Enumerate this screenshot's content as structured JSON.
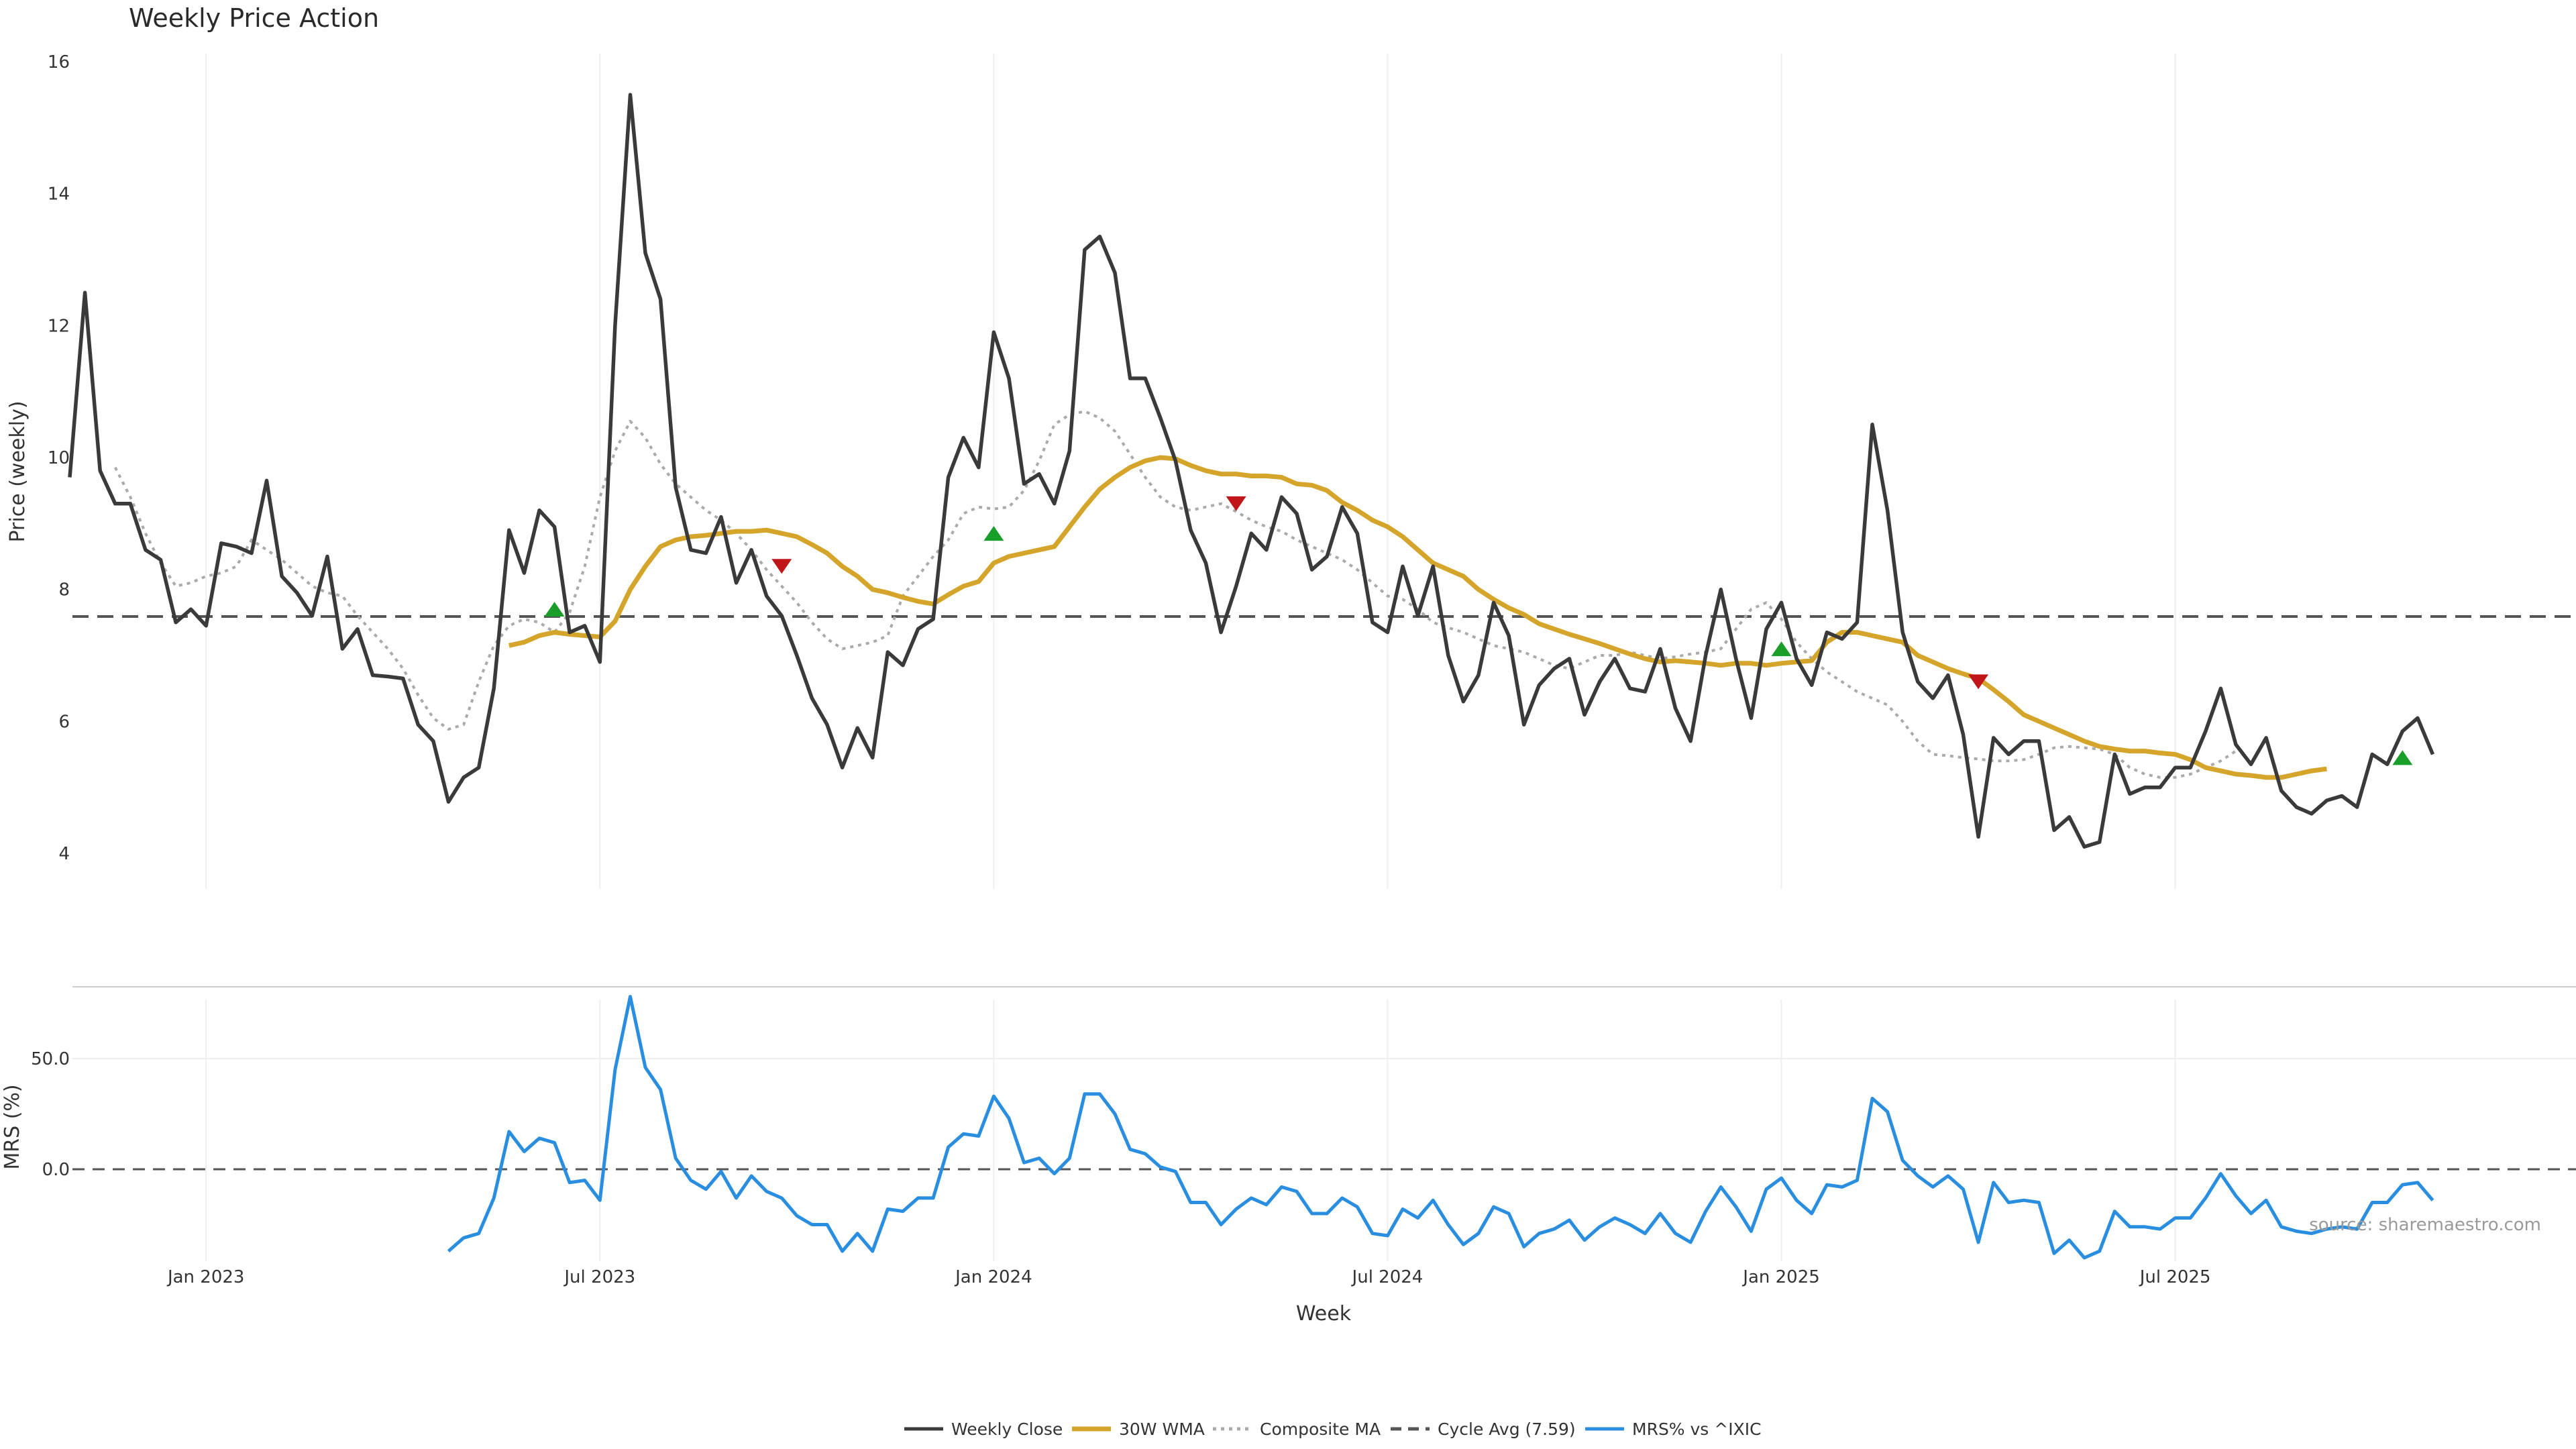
{
  "chart_data": {
    "type": "line",
    "title": "Weekly Price Action",
    "xlabel": "Week",
    "source": "source: sharemaestro.com",
    "colors": {
      "close": "#3a3a3a",
      "wma": "#d4a52a",
      "composite": "#aaaaaa",
      "cycle": "#555555",
      "mrs": "#2a8ee0",
      "buy": "#1a9e2a",
      "sell": "#c0161a",
      "grid": "#eeeeee",
      "divider": "#cccccc"
    },
    "x_ticks": [
      {
        "week": 9,
        "label": "Jan 2023"
      },
      {
        "week": 35,
        "label": "Jul 2023"
      },
      {
        "week": 61,
        "label": "Jan 2024"
      },
      {
        "week": 87,
        "label": "Jul 2024"
      },
      {
        "week": 113,
        "label": "Jan 2025"
      },
      {
        "week": 139,
        "label": "Jul 2025"
      }
    ],
    "price_panel": {
      "ylabel": "Price (weekly)",
      "ylim": [
        3.45,
        16.2
      ],
      "yticks": [
        {
          "value": 4,
          "label": "4"
        },
        {
          "value": 6,
          "label": "6"
        },
        {
          "value": 8,
          "label": "8"
        },
        {
          "value": 10,
          "label": "10"
        },
        {
          "value": 12,
          "label": "12"
        },
        {
          "value": 14,
          "label": "14"
        },
        {
          "value": 16,
          "label": "16"
        }
      ],
      "cycle_avg": 7.59
    },
    "mrs_panel": {
      "ylabel": "MRS (%)",
      "ylim": [
        -50,
        90
      ],
      "yticks": [
        {
          "value": 0,
          "label": "0.0"
        },
        {
          "value": 50,
          "label": "50.0"
        }
      ]
    },
    "legend": {
      "placement": "bottom-center",
      "items": [
        {
          "key": "close",
          "label": "Weekly Close",
          "style": "solid"
        },
        {
          "key": "wma",
          "label": "30W WMA",
          "style": "solid"
        },
        {
          "key": "composite",
          "label": "Composite MA",
          "style": "dotted"
        },
        {
          "key": "cycle",
          "label": "Cycle Avg (7.59)",
          "style": "dashed"
        },
        {
          "key": "mrs",
          "label": "MRS% vs ^IXIC",
          "style": "solid"
        }
      ]
    },
    "series": {
      "close": {
        "start_week": 0,
        "values": [
          9.7,
          12.5,
          9.8,
          9.3,
          9.3,
          8.6,
          8.45,
          7.5,
          7.7,
          7.45,
          8.7,
          8.65,
          8.55,
          9.65,
          8.2,
          7.95,
          7.6,
          8.5,
          7.1,
          7.4,
          6.7,
          6.68,
          6.65,
          5.95,
          5.7,
          4.78,
          5.15,
          5.3,
          6.5,
          8.9,
          8.25,
          9.2,
          8.95,
          7.35,
          7.45,
          6.9,
          12.0,
          15.5,
          13.1,
          12.4,
          9.55,
          8.6,
          8.55,
          9.1,
          8.1,
          8.6,
          7.9,
          7.6,
          7.0,
          6.35,
          5.95,
          5.3,
          5.9,
          5.45,
          7.05,
          6.85,
          7.4,
          7.55,
          9.7,
          10.3,
          9.85,
          11.9,
          11.2,
          9.6,
          9.75,
          9.3,
          10.1,
          13.15,
          13.35,
          12.8,
          11.2,
          11.2,
          10.6,
          9.95,
          8.9,
          8.4,
          7.35,
          8.05,
          8.85,
          8.6,
          9.4,
          9.15,
          8.3,
          8.5,
          9.25,
          8.85,
          7.5,
          7.35,
          8.35,
          7.6,
          8.35,
          7.0,
          6.3,
          6.7,
          7.8,
          7.3,
          5.95,
          6.55,
          6.8,
          6.95,
          6.1,
          6.6,
          6.95,
          6.5,
          6.45,
          7.1,
          6.2,
          5.7,
          7.0,
          8.0,
          6.95,
          6.05,
          7.4,
          7.8,
          6.95,
          6.55,
          7.35,
          7.25,
          7.5,
          10.5,
          9.2,
          7.35,
          6.6,
          6.35,
          6.7,
          5.8,
          4.25,
          5.75,
          5.5,
          5.7,
          5.7,
          4.35,
          4.55,
          4.1,
          4.17,
          5.5,
          4.9,
          5.0,
          5.0,
          5.3,
          5.3,
          5.85,
          6.5,
          5.65,
          5.35,
          5.75,
          4.95,
          4.7,
          4.6,
          4.8,
          4.87,
          4.7,
          5.5,
          5.35,
          5.85,
          6.05,
          5.5
        ]
      },
      "wma": {
        "start_week": 29,
        "values": [
          7.15,
          7.2,
          7.3,
          7.35,
          7.32,
          7.3,
          7.28,
          7.52,
          8.0,
          8.35,
          8.65,
          8.75,
          8.8,
          8.82,
          8.85,
          8.88,
          8.88,
          8.9,
          8.85,
          8.8,
          8.68,
          8.55,
          8.35,
          8.2,
          8.0,
          7.95,
          7.88,
          7.82,
          7.78,
          7.92,
          8.05,
          8.12,
          8.4,
          8.5,
          8.55,
          8.6,
          8.65,
          8.95,
          9.25,
          9.52,
          9.7,
          9.85,
          9.95,
          10.0,
          9.98,
          9.88,
          9.8,
          9.75,
          9.75,
          9.72,
          9.72,
          9.7,
          9.6,
          9.58,
          9.5,
          9.32,
          9.2,
          9.05,
          8.95,
          8.8,
          8.6,
          8.4,
          8.3,
          8.2,
          8.0,
          7.85,
          7.72,
          7.62,
          7.48,
          7.4,
          7.32,
          7.25,
          7.18,
          7.1,
          7.02,
          6.95,
          6.9,
          6.92,
          6.9,
          6.88,
          6.85,
          6.88,
          6.88,
          6.85,
          6.88,
          6.9,
          6.92,
          7.2,
          7.35,
          7.35,
          7.3,
          7.25,
          7.2,
          7.0,
          6.9,
          6.8,
          6.72,
          6.65,
          6.48,
          6.3,
          6.1,
          6.0,
          5.9,
          5.8,
          5.7,
          5.62,
          5.58,
          5.55,
          5.55,
          5.52,
          5.5,
          5.42,
          5.3,
          5.25,
          5.2,
          5.18,
          5.15,
          5.15,
          5.2,
          5.25,
          5.28
        ]
      },
      "composite": {
        "start_week": 3,
        "values": [
          9.85,
          9.4,
          8.85,
          8.4,
          8.05,
          8.1,
          8.2,
          8.25,
          8.35,
          8.75,
          8.6,
          8.45,
          8.25,
          8.05,
          7.95,
          7.9,
          7.6,
          7.35,
          7.1,
          6.8,
          6.4,
          6.05,
          5.88,
          5.95,
          6.6,
          7.15,
          7.45,
          7.55,
          7.5,
          7.35,
          7.65,
          8.35,
          9.4,
          10.1,
          10.55,
          10.3,
          9.9,
          9.6,
          9.4,
          9.2,
          9.05,
          8.85,
          8.6,
          8.3,
          8.05,
          7.8,
          7.5,
          7.25,
          7.1,
          7.15,
          7.2,
          7.3,
          7.9,
          8.2,
          8.5,
          8.75,
          9.15,
          9.25,
          9.22,
          9.25,
          9.5,
          9.95,
          10.5,
          10.65,
          10.7,
          10.6,
          10.4,
          10.05,
          9.7,
          9.4,
          9.25,
          9.2,
          9.25,
          9.3,
          9.18,
          9.05,
          8.95,
          8.88,
          8.75,
          8.65,
          8.55,
          8.45,
          8.3,
          8.1,
          7.9,
          7.85,
          7.7,
          7.5,
          7.42,
          7.35,
          7.25,
          7.15,
          7.1,
          7.05,
          6.95,
          6.85,
          6.8,
          6.9,
          7.0,
          7.0,
          7.05,
          7.0,
          6.95,
          6.98,
          7.02,
          7.05,
          7.1,
          7.4,
          7.7,
          7.8,
          7.55,
          7.2,
          6.95,
          6.75,
          6.6,
          6.45,
          6.35,
          6.25,
          6.0,
          5.7,
          5.5,
          5.48,
          5.45,
          5.43,
          5.4,
          5.4,
          5.42,
          5.5,
          5.6,
          5.62,
          5.6,
          5.58,
          5.5,
          5.3,
          5.2,
          5.15,
          5.15,
          5.2,
          5.3,
          5.4,
          5.55
        ]
      },
      "mrs": {
        "start_week": 25,
        "values": [
          -37,
          -31,
          -29,
          -13,
          17,
          8,
          14,
          12,
          -6,
          -5,
          -14,
          45,
          78,
          46,
          36,
          5,
          -5,
          -9,
          -1,
          -13,
          -3,
          -10,
          -13,
          -21,
          -25,
          -25,
          -37,
          -29,
          -37,
          -18,
          -19,
          -13,
          -13,
          10,
          16,
          15,
          33,
          23,
          3,
          5,
          -2,
          5,
          34,
          34,
          25,
          9,
          7,
          1,
          -1,
          -15,
          -15,
          -25,
          -18,
          -13,
          -16,
          -8,
          -10,
          -20,
          -20,
          -13,
          -17,
          -29,
          -30,
          -18,
          -22,
          -14,
          -25,
          -34,
          -29,
          -17,
          -20,
          -35,
          -29,
          -27,
          -23,
          -32,
          -26,
          -22,
          -25,
          -29,
          -20,
          -29,
          -33,
          -19,
          -8,
          -17,
          -28,
          -9,
          -4,
          -14,
          -20,
          -7,
          -8,
          -5,
          32,
          26,
          4,
          -3,
          -8,
          -3,
          -9,
          -33,
          -6,
          -15,
          -14,
          -15,
          -38,
          -32,
          -40,
          -37,
          -19,
          -26,
          -26,
          -27,
          -22,
          -22,
          -13,
          -2,
          -12,
          -20,
          -14,
          -26,
          -28,
          -29,
          -27,
          -26,
          -27,
          -15,
          -15,
          -7,
          -6,
          -14
        ]
      }
    },
    "signals": [
      {
        "type": "buy",
        "week": 32,
        "value": 7.7
      },
      {
        "type": "sell",
        "week": 47,
        "value": 8.35
      },
      {
        "type": "buy",
        "week": 61,
        "value": 8.85
      },
      {
        "type": "sell",
        "week": 77,
        "value": 9.3
      },
      {
        "type": "buy",
        "week": 113,
        "value": 7.1
      },
      {
        "type": "sell",
        "week": 126,
        "value": 6.6
      },
      {
        "type": "buy",
        "week": 154,
        "value": 5.45
      }
    ]
  }
}
